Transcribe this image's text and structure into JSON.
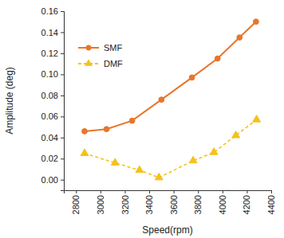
{
  "chart_data": {
    "type": "line",
    "x_label": "Speed(rpm)",
    "y_label": "Amplitude (deg)",
    "xlim": [
      2700,
      4400
    ],
    "xticks": [
      2800,
      3000,
      3200,
      3400,
      3600,
      3800,
      4000,
      4200,
      4400
    ],
    "ylim": [
      -0.01,
      0.16
    ],
    "yticks": [
      {
        "value": 0,
        "label": "0.00"
      },
      0.02,
      0.04,
      0.06,
      0.08,
      {
        "value": 0.1,
        "label": "0.10"
      },
      0.12,
      0.14,
      0.16
    ],
    "legend": "upper-left",
    "series": [
      {
        "name": "SMF",
        "color": "#e8762b",
        "marker": "circle",
        "line_style": "solid",
        "x": [
          2870,
          3050,
          3260,
          3500,
          3750,
          3960,
          4140,
          4275
        ],
        "values": [
          0.046,
          0.048,
          0.056,
          0.076,
          0.097,
          0.115,
          0.135,
          0.15
        ]
      },
      {
        "name": "DMF",
        "color": "#f5c21b",
        "marker": "triangle",
        "line_style": "dashed",
        "x": [
          2870,
          3120,
          3320,
          3480,
          3760,
          3930,
          4110,
          4280
        ],
        "values": [
          0.025,
          0.016,
          0.009,
          0.002,
          0.018,
          0.026,
          0.042,
          0.057
        ]
      }
    ]
  }
}
